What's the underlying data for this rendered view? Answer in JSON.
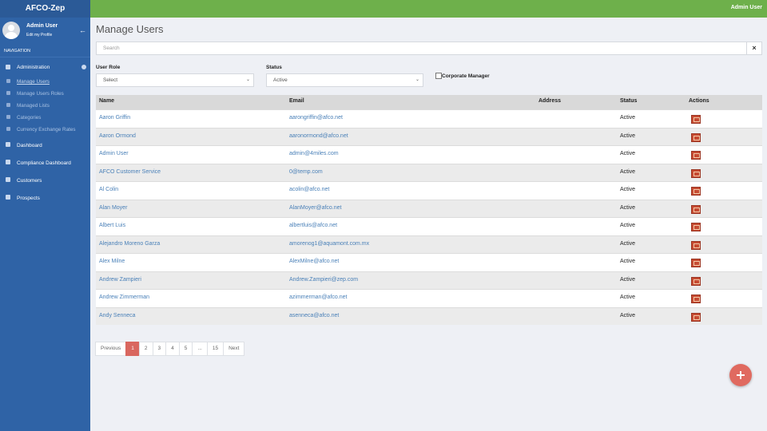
{
  "app": {
    "brand": "AFCO-Zep",
    "top_user": "Admin User"
  },
  "sidebar": {
    "user_name": "Admin User",
    "profile_link": "Edit my Profile",
    "navigation_label": "NAVIGATION",
    "admin_menu": {
      "label": "Administration",
      "items": [
        "Manage Users",
        "Manage Users Roles",
        "Managed Lists",
        "Categories",
        "Currency Exchange Rates"
      ]
    },
    "menu": [
      "Dashboard",
      "Compliance Dashboard",
      "Customers",
      "Prospects"
    ]
  },
  "page": {
    "title": "Manage Users",
    "search_placeholder": "Search"
  },
  "filters": {
    "user_role_label": "User Role",
    "user_role_value": "Select",
    "status_label": "Status",
    "status_value": "Active",
    "corporate_manager_label": "Corporate Manager"
  },
  "table": {
    "columns": [
      "Name",
      "Email",
      "Address",
      "Status",
      "Actions"
    ],
    "rows": [
      {
        "name": "Aaron Griffin",
        "email": "aarongriffin@afco.net",
        "status": "Active"
      },
      {
        "name": "Aaron Ormond",
        "email": "aaronormond@afco.net",
        "status": "Active"
      },
      {
        "name": "Admin User",
        "email": "admin@4miles.com",
        "status": "Active"
      },
      {
        "name": "AFCO Customer Service",
        "email": "0@temp.com",
        "status": "Active"
      },
      {
        "name": "Al Colin",
        "email": "acolin@afco.net",
        "status": "Active"
      },
      {
        "name": "Alan Moyer",
        "email": "AlanMoyer@afco.net",
        "status": "Active"
      },
      {
        "name": "Albert Luis",
        "email": "albertluis@afco.net",
        "status": "Active"
      },
      {
        "name": "Alejandro Moreno Garza",
        "email": "amorenog1@aquamont.com.mx",
        "status": "Active"
      },
      {
        "name": "Alex Milne",
        "email": "AlexMilne@afco.net",
        "status": "Active"
      },
      {
        "name": "Andrew Zampieri",
        "email": "Andrew.Zampieri@zep.com",
        "status": "Active"
      },
      {
        "name": "Andrew Zimmerman",
        "email": "azimmerman@afco.net",
        "status": "Active"
      },
      {
        "name": "Andy Senneca",
        "email": "asenneca@afco.net",
        "status": "Active"
      }
    ]
  },
  "pagination": {
    "previous": "Previous",
    "pages": [
      1,
      2,
      3,
      4,
      5,
      "...",
      15
    ],
    "current": 1,
    "next": "Next"
  }
}
